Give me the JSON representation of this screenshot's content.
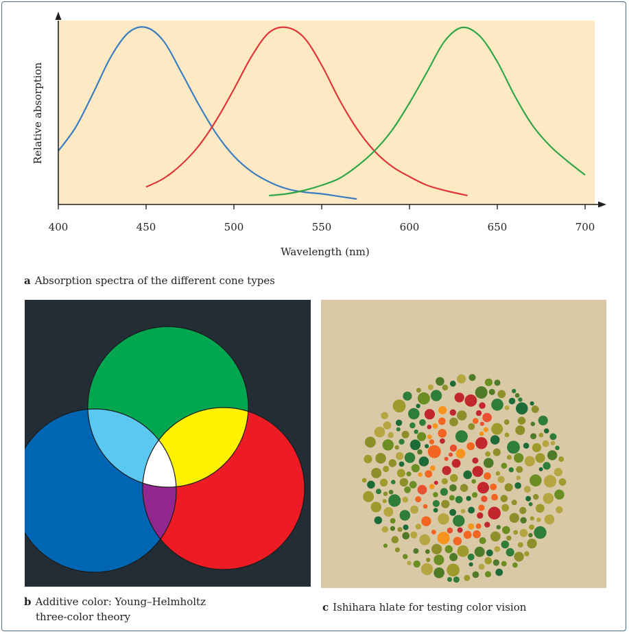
{
  "chart_data": {
    "type": "line",
    "xlabel": "Wavelength (nm)",
    "ylabel": "Relative absorption",
    "xlim": [
      400,
      700
    ],
    "x_ticks": [
      "400",
      "450",
      "500",
      "550",
      "600",
      "650",
      "700"
    ],
    "background": "#fdeac5",
    "series": [
      {
        "color": "#3b7bbf",
        "x": [
          400,
          410,
          420,
          430,
          440,
          450,
          460,
          470,
          480,
          490,
          500,
          510,
          520,
          530,
          540,
          550,
          560,
          570
        ],
        "y": [
          0.28,
          0.42,
          0.62,
          0.83,
          0.97,
          1.0,
          0.92,
          0.74,
          0.55,
          0.38,
          0.25,
          0.16,
          0.1,
          0.06,
          0.04,
          0.03,
          0.015,
          0.0
        ]
      },
      {
        "color": "#e0353b",
        "x": [
          450,
          460,
          470,
          480,
          490,
          500,
          510,
          520,
          530,
          540,
          550,
          560,
          570,
          580,
          590,
          600,
          610,
          620,
          633
        ],
        "y": [
          0.07,
          0.12,
          0.2,
          0.31,
          0.46,
          0.64,
          0.83,
          0.97,
          1.0,
          0.94,
          0.78,
          0.58,
          0.41,
          0.28,
          0.19,
          0.13,
          0.08,
          0.05,
          0.02
        ]
      },
      {
        "color": "#2ea54a",
        "x": [
          520,
          530,
          540,
          550,
          560,
          570,
          580,
          590,
          600,
          610,
          620,
          630,
          640,
          650,
          660,
          670,
          680,
          690,
          700
        ],
        "y": [
          0.02,
          0.03,
          0.05,
          0.08,
          0.12,
          0.19,
          0.28,
          0.4,
          0.56,
          0.74,
          0.92,
          1.0,
          0.95,
          0.8,
          0.6,
          0.43,
          0.31,
          0.22,
          0.14
        ]
      }
    ]
  },
  "captions": {
    "a_letter": "a",
    "a_text": "Absorption spectra of the different cone types",
    "b_letter": "b",
    "b_text_line1": "Additive color: Young–Helmholtz",
    "b_text_line2": "three-color theory",
    "c_letter": "c",
    "c_text": "Ishihara hlate for testing color vision"
  },
  "venn": {
    "background": "#232d35",
    "colors": {
      "green": "#00a650",
      "blue": "#0066b3",
      "red": "#ed1c24",
      "cyan": "#5bc8f2",
      "yellow": "#fff200",
      "magenta": "#92278f",
      "white": "#ffffff"
    }
  },
  "ishihara": {
    "background": "#d9c9a6",
    "figure_colors": [
      "#f26522",
      "#f7941d",
      "#c1272d",
      "#e8502f"
    ],
    "field_colors": [
      "#1e6b3a",
      "#2f7d3b",
      "#6b8e23",
      "#9e9a2c",
      "#b5a642",
      "#4f7a28",
      "#8c8f2a"
    ]
  }
}
